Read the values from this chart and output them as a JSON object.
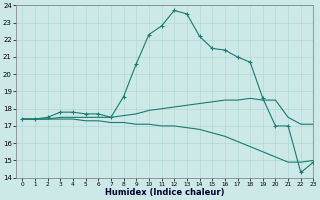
{
  "xlabel": "Humidex (Indice chaleur)",
  "xlim": [
    -0.5,
    23
  ],
  "ylim": [
    14,
    24
  ],
  "yticks": [
    14,
    15,
    16,
    17,
    18,
    19,
    20,
    21,
    22,
    23,
    24
  ],
  "xticks": [
    0,
    1,
    2,
    3,
    4,
    5,
    6,
    7,
    8,
    9,
    10,
    11,
    12,
    13,
    14,
    15,
    16,
    17,
    18,
    19,
    20,
    21,
    22,
    23
  ],
  "bg_color": "#cce9e7",
  "grid_color": "#b3d8d6",
  "line_color": "#1a7a6e",
  "line1_x": [
    0,
    1,
    2,
    3,
    4,
    5,
    6,
    7,
    8,
    9,
    10,
    11,
    12,
    13,
    14,
    15,
    16,
    17,
    18,
    19,
    20,
    21,
    22,
    23
  ],
  "line1_y": [
    17.4,
    17.4,
    17.5,
    17.8,
    17.8,
    17.7,
    17.7,
    17.5,
    18.7,
    20.6,
    22.3,
    22.8,
    23.7,
    23.5,
    22.2,
    21.5,
    21.4,
    21.0,
    20.7,
    18.6,
    17.0,
    17.0,
    14.3,
    14.9
  ],
  "line2_x": [
    0,
    1,
    2,
    3,
    4,
    5,
    6,
    7,
    8,
    9,
    10,
    11,
    12,
    13,
    14,
    15,
    16,
    17,
    18,
    19,
    20,
    21,
    22,
    23
  ],
  "line2_y": [
    17.4,
    17.4,
    17.4,
    17.5,
    17.5,
    17.5,
    17.5,
    17.5,
    17.6,
    17.7,
    17.9,
    18.0,
    18.1,
    18.2,
    18.3,
    18.4,
    18.5,
    18.5,
    18.6,
    18.5,
    18.5,
    17.5,
    17.1,
    17.1
  ],
  "line3_x": [
    0,
    1,
    2,
    3,
    4,
    5,
    6,
    7,
    8,
    9,
    10,
    11,
    12,
    13,
    14,
    15,
    16,
    17,
    18,
    19,
    20,
    21,
    22,
    23
  ],
  "line3_y": [
    17.4,
    17.4,
    17.4,
    17.4,
    17.4,
    17.3,
    17.3,
    17.2,
    17.2,
    17.1,
    17.1,
    17.0,
    17.0,
    16.9,
    16.8,
    16.6,
    16.4,
    16.1,
    15.8,
    15.5,
    15.2,
    14.9,
    14.9,
    15.0
  ]
}
